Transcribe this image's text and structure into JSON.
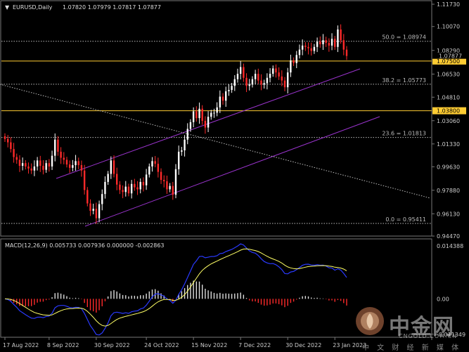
{
  "header": {
    "symbol": "EURUSD,Daily",
    "ohlc": "1.07820 1.07979 1.07817 1.07877"
  },
  "macd_header": "MACD(12,26,9) 0.005733 0.007936 0.000000 -0.002863",
  "watermark": {
    "brand": "中金网",
    "site": "CNGOLD.COM.CN",
    "tagline": "中 文 财 经 新 媒 体"
  },
  "colors": {
    "background": "#000000",
    "bull": "#ffffff",
    "bear": "#ff2a2a",
    "level_line": "#ffcc33",
    "channel": "#9933cc",
    "macd_signal": "#ffff66",
    "macd_main": "#2a3aff"
  },
  "chart_data": {
    "type": "candlestick",
    "price_axis": {
      "ticks": [
        "1.11730",
        "1.10070",
        "1.08290",
        "1.06530",
        "1.04810",
        "1.03060",
        "1.01330",
        "0.99630",
        "0.97880",
        "0.96130",
        "0.94470"
      ],
      "range": [
        0.9447,
        1.1173
      ]
    },
    "fib_levels": [
      {
        "label": "50.0 = 1.08974",
        "value": 1.08974
      },
      {
        "label": "38.2 = 1.05773",
        "value": 1.05773
      },
      {
        "label": "23.6 = 1.01813",
        "value": 1.01813
      },
      {
        "label": "0.0 = 0.95411",
        "value": 0.95411
      }
    ],
    "horizontal_levels": [
      {
        "label": "1.07500",
        "value": 1.075
      },
      {
        "label": "1.03800",
        "value": 1.038
      }
    ],
    "current_price": {
      "label": "1.07877",
      "value": 1.07877
    },
    "dates": [
      "17 Aug 2022",
      "8 Sep 2022",
      "30 Sep 2022",
      "24 Oct 2022",
      "15 Nov 2022",
      "7 Dec 2022",
      "30 Dec 2022",
      "23 Jan 2023"
    ],
    "closes": [
      1.017,
      1.0145,
      1.0095,
      1.0035,
      1.0015,
      0.997,
      0.999,
      0.9965,
      0.995,
      0.9935,
      0.9965,
      1.001,
      0.997,
      0.994,
      0.999,
      0.9965,
      1.0045,
      1.0165,
      1.0075,
      1.003,
      1.0015,
      0.998,
      0.9955,
      0.9975,
      1.0005,
      0.9975,
      0.9935,
      0.979,
      0.969,
      0.9635,
      0.965,
      0.958,
      0.9685,
      0.976,
      0.985,
      0.991,
      1.001,
      0.991,
      0.983,
      0.979,
      0.9775,
      0.9815,
      0.9765,
      0.9835,
      0.981,
      0.9795,
      0.985,
      0.9825,
      0.9905,
      0.9965,
      1.0005,
      0.9985,
      0.9925,
      0.9865,
      0.9855,
      0.9795,
      0.982,
      0.9755,
      0.9945,
      1.0075,
      1.0085,
      1.0165,
      1.0245,
      1.0295,
      1.0375,
      1.0325,
      1.0395,
      1.0305,
      1.0255,
      1.0335,
      1.0365,
      1.0365,
      1.0405,
      1.0485,
      1.0455,
      1.0525,
      1.0535,
      1.0565,
      1.0615,
      1.0655,
      1.0705,
      1.0625,
      1.0565,
      1.0575,
      1.0615,
      1.0655,
      1.0605,
      1.0575,
      1.0585,
      1.0625,
      1.0655,
      1.0695,
      1.0665,
      1.0635,
      1.0605,
      1.0555,
      1.0665,
      1.0755,
      1.0735,
      1.0795,
      1.0835,
      1.0865,
      1.0855,
      1.0845,
      1.0825,
      1.0855,
      1.0895,
      1.0875,
      1.0905,
      1.0885,
      1.0865,
      1.0915,
      1.0855,
      1.0985,
      1.0905,
      1.0835,
      1.0788
    ],
    "macd": {
      "range": [
        -0.011349,
        0.014388
      ],
      "ticks": [
        "0.014388",
        "0.00",
        "-0.011349"
      ]
    }
  }
}
